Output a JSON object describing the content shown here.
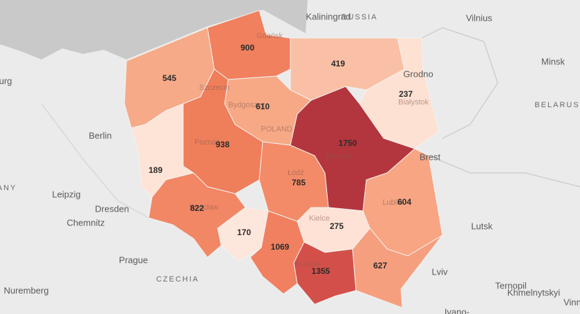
{
  "map": {
    "regions": [
      {
        "value": 545,
        "color": "#f6aa88"
      },
      {
        "value": 900,
        "color": "#f0805e"
      },
      {
        "value": 419,
        "color": "#f9c0a5"
      },
      {
        "value": 237,
        "color": "#fde1d2"
      },
      {
        "value": 610,
        "color": "#f7a986"
      },
      {
        "value": 189,
        "color": "#fde4d7"
      },
      {
        "value": 938,
        "color": "#ef7e5b"
      },
      {
        "value": 1750,
        "color": "#b3363e"
      },
      {
        "value": 785,
        "color": "#f38b68"
      },
      {
        "value": 822,
        "color": "#f28765"
      },
      {
        "value": 170,
        "color": "#fde7dc"
      },
      {
        "value": 1069,
        "color": "#f08060"
      },
      {
        "value": 275,
        "color": "#fde2d5"
      },
      {
        "value": 1355,
        "color": "#d3504a"
      },
      {
        "value": 604,
        "color": "#f7a583"
      },
      {
        "value": 627,
        "color": "#f69f7e"
      }
    ],
    "places": [
      "Kaliningrad",
      "RUSSIA",
      "Vilnius",
      "Minsk",
      "BELARUS",
      "Grodno",
      "Brest",
      "urg",
      "Berlin",
      "ANY",
      "Leipzig",
      "Dresden",
      "Chemnitz",
      "Prague",
      "CZECHIA",
      "Nuremberg",
      "Lutsk",
      "Lviv",
      "Ternopil",
      "Khmelnytskyi",
      "Vinn",
      "Ivano-"
    ],
    "cities": [
      "Gdańsk",
      "Szczecin",
      "Bydgoszcz",
      "POLAND",
      "Poznań",
      "Białystok",
      "Warsaw",
      "Łódź",
      "Wrocław",
      "Kielce",
      "Lublin",
      "Kraków"
    ]
  }
}
